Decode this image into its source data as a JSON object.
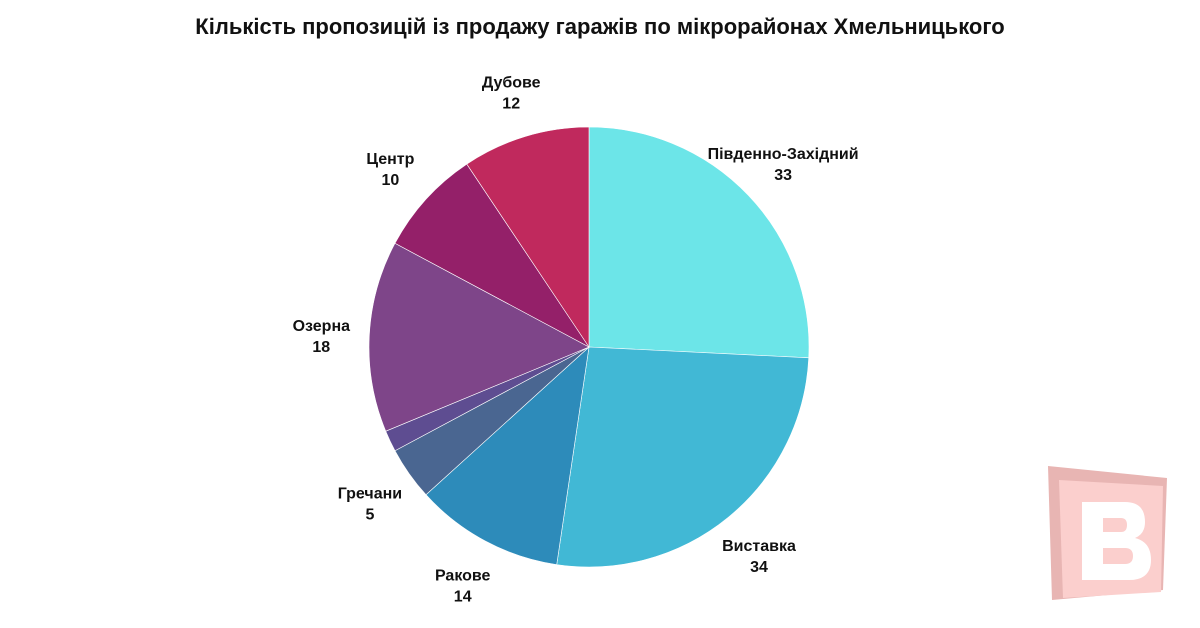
{
  "chart_data": {
    "type": "pie",
    "title": "Кількість пропозицій із продажу гаражів по мікрорайонах Хмельницького",
    "legend": "none",
    "start_angle_deg": 0,
    "direction": "clockwise",
    "slices": [
      {
        "label": "Південно-Західний",
        "value": 33,
        "value_label": "33",
        "color": "#6CE5E8"
      },
      {
        "label": "Виставка",
        "value": 34,
        "value_label": "34",
        "color": "#41B8D5"
      },
      {
        "label": "Ракове",
        "value": 14,
        "value_label": "14",
        "color": "#2D8BBA"
      },
      {
        "label": "Гречани",
        "value": 5,
        "value_label": "5",
        "color": "#4A6691"
      },
      {
        "label": "",
        "value": 2,
        "value_label": "",
        "color": "#5E4D91"
      },
      {
        "label": "Озерна",
        "value": 18,
        "value_label": "18",
        "color": "#7E4589"
      },
      {
        "label": "Центр",
        "value": 10,
        "value_label": "10",
        "color": "#942069"
      },
      {
        "label": "Дубове",
        "value": 12,
        "value_label": "12",
        "color": "#C0295D"
      }
    ]
  },
  "watermark": {
    "letter": "B",
    "colors": {
      "back": "#E8B5B3",
      "front": "#FBCFCD",
      "letter": "#FFFFFF"
    }
  }
}
